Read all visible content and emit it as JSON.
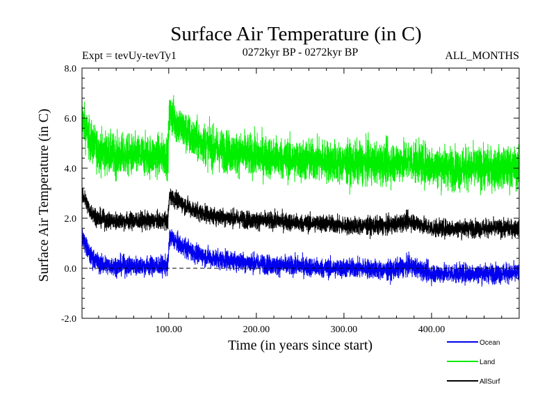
{
  "chart_data": {
    "type": "line",
    "title": "Surface Air Temperature (in C)",
    "subtitle_left": "Expt = tevUy-tevTy1",
    "subtitle_center": "0272kyr BP - 0272kyr BP",
    "subtitle_right": "ALL_MONTHS",
    "xlabel": "Time (in years since start)",
    "ylabel": "Surface Air Temperature (in C)",
    "xlim": [
      1,
      500
    ],
    "ylim": [
      -2.0,
      8.0
    ],
    "x_ticks": [
      100,
      200,
      300,
      400
    ],
    "x_tick_labels": [
      "100.00",
      "200.00",
      "300.00",
      "400.00"
    ],
    "y_ticks": [
      -2,
      0,
      2,
      4,
      6,
      8
    ],
    "y_tick_labels": [
      "-2.0",
      "0.0",
      "2.0",
      "4.0",
      "6.0",
      "8.0"
    ],
    "zero_line": true,
    "legend_position": "bottom-right, outside plot",
    "series": [
      {
        "name": "Land",
        "color": "#00ee00",
        "x": [
          1,
          10,
          20,
          30,
          40,
          50,
          60,
          70,
          80,
          90,
          99,
          101,
          110,
          120,
          130,
          140,
          150,
          175,
          200,
          225,
          250,
          275,
          300,
          325,
          350,
          375,
          400,
          425,
          450,
          475,
          500
        ],
        "values": [
          6.0,
          5.1,
          4.7,
          4.6,
          4.5,
          4.5,
          4.5,
          4.5,
          4.5,
          4.5,
          4.5,
          6.2,
          5.8,
          5.4,
          5.1,
          5.0,
          4.8,
          4.6,
          4.5,
          4.4,
          4.3,
          4.3,
          4.2,
          4.2,
          4.2,
          4.3,
          4.1,
          4.0,
          4.0,
          4.0,
          4.0
        ],
        "noise": 0.75
      },
      {
        "name": "AllSurf",
        "color": "#000000",
        "x": [
          1,
          10,
          20,
          30,
          40,
          50,
          60,
          70,
          80,
          90,
          99,
          101,
          110,
          120,
          130,
          140,
          150,
          175,
          200,
          225,
          250,
          275,
          300,
          325,
          350,
          375,
          400,
          425,
          450,
          475,
          500
        ],
        "values": [
          3.0,
          2.3,
          2.0,
          1.9,
          1.9,
          1.9,
          1.9,
          1.9,
          1.9,
          1.9,
          1.9,
          2.9,
          2.7,
          2.5,
          2.3,
          2.2,
          2.1,
          2.0,
          1.9,
          1.9,
          1.8,
          1.8,
          1.7,
          1.7,
          1.7,
          1.9,
          1.6,
          1.6,
          1.6,
          1.6,
          1.6
        ],
        "noise": 0.32
      },
      {
        "name": "Ocean",
        "color": "#0000ee",
        "x": [
          1,
          10,
          20,
          30,
          40,
          50,
          60,
          70,
          80,
          90,
          99,
          101,
          110,
          120,
          130,
          140,
          150,
          175,
          200,
          225,
          250,
          275,
          300,
          325,
          350,
          375,
          400,
          425,
          450,
          475,
          500
        ],
        "values": [
          1.3,
          0.5,
          0.2,
          0.1,
          0.1,
          0.1,
          0.1,
          0.1,
          0.1,
          0.1,
          0.1,
          1.3,
          1.0,
          0.8,
          0.6,
          0.5,
          0.4,
          0.3,
          0.2,
          0.1,
          0.1,
          0.0,
          0.0,
          0.0,
          -0.1,
          0.1,
          -0.2,
          -0.2,
          -0.2,
          -0.2,
          -0.2
        ],
        "noise": 0.35
      }
    ]
  }
}
